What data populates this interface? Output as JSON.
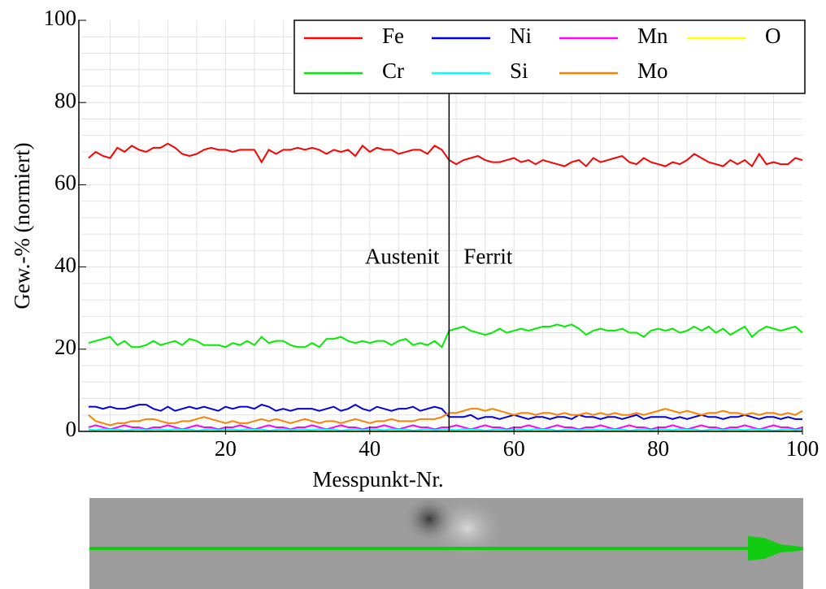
{
  "chart_data": {
    "type": "line",
    "x_label": "Messpunkt-Nr.",
    "y_label": "Gew.-% (normiert)",
    "annotations": [
      "Austenit",
      "Ferrit"
    ],
    "boundary_x": 51,
    "xlim": [
      0,
      100
    ],
    "xticks": [
      20,
      40,
      60,
      80,
      100
    ],
    "ylim": [
      0,
      100
    ],
    "yticks": [
      0,
      20,
      40,
      60,
      80,
      100
    ],
    "grid": true,
    "minor_divisions": 5,
    "legend": "upper right",
    "x": [
      1,
      2,
      3,
      4,
      5,
      6,
      7,
      8,
      9,
      10,
      11,
      12,
      13,
      14,
      15,
      16,
      17,
      18,
      19,
      20,
      21,
      22,
      23,
      24,
      25,
      26,
      27,
      28,
      29,
      30,
      31,
      32,
      33,
      34,
      35,
      36,
      37,
      38,
      39,
      40,
      41,
      42,
      43,
      44,
      45,
      46,
      47,
      48,
      49,
      50,
      51,
      52,
      53,
      54,
      55,
      56,
      57,
      58,
      59,
      60,
      61,
      62,
      63,
      64,
      65,
      66,
      67,
      68,
      69,
      70,
      71,
      72,
      73,
      74,
      75,
      76,
      77,
      78,
      79,
      80,
      81,
      82,
      83,
      84,
      85,
      86,
      87,
      88,
      89,
      90,
      91,
      92,
      93,
      94,
      95,
      96,
      97,
      98,
      99,
      100
    ],
    "series": [
      {
        "name": "Fe",
        "color": "#ff0000",
        "values": [
          66.5,
          68,
          67,
          66.5,
          69,
          68,
          69.5,
          68.5,
          68,
          69,
          69,
          70,
          69,
          67.5,
          67,
          67.5,
          68.5,
          69,
          68.5,
          68.5,
          68,
          68.5,
          68.5,
          68.5,
          65.5,
          68.5,
          67.5,
          68.5,
          68.5,
          69,
          68.5,
          69,
          68.5,
          67.5,
          68.5,
          68,
          68.5,
          67,
          69.5,
          68,
          69,
          68.5,
          68.5,
          67.5,
          68,
          68.5,
          68.5,
          67.5,
          69.5,
          68.5,
          66,
          65,
          66,
          66.5,
          67,
          66,
          65.5,
          65.5,
          66,
          66.5,
          65.5,
          66,
          65,
          66,
          65.5,
          65,
          64.5,
          65.5,
          66,
          64.5,
          66.5,
          65.5,
          66,
          66.5,
          67,
          65.5,
          65,
          66.5,
          65.5,
          65,
          64.5,
          65.5,
          65,
          66,
          67.5,
          66.5,
          65.5,
          65,
          64.5,
          66,
          65,
          66,
          64.5,
          67.5,
          65,
          65.5,
          65,
          65,
          66.5,
          66
        ]
      },
      {
        "name": "Ni",
        "color": "#0000e0",
        "values": [
          6,
          6,
          5.5,
          6,
          5.5,
          5.5,
          6,
          6.5,
          6.5,
          5.5,
          5,
          6,
          5,
          5.5,
          6,
          5.5,
          6,
          5.5,
          5,
          6,
          5.5,
          6,
          6,
          5.5,
          6.5,
          6,
          5,
          5.5,
          5,
          5.5,
          5.5,
          5.5,
          5,
          5.5,
          6,
          5,
          5.5,
          6.5,
          5.5,
          5,
          6,
          5.5,
          5,
          5.5,
          5.5,
          6,
          5,
          5.5,
          6,
          5.5,
          3.5,
          3.5,
          3.5,
          4,
          3,
          3.5,
          3.5,
          3,
          3.5,
          4,
          3.5,
          3,
          3.5,
          3.5,
          3,
          3.5,
          3.5,
          3,
          4,
          3.5,
          3.5,
          3,
          3.5,
          3.5,
          3,
          3.5,
          4,
          3,
          3.5,
          3.5,
          3.5,
          3,
          3.5,
          3,
          3.5,
          4,
          3.5,
          3.5,
          3,
          3.5,
          3.5,
          4,
          3.5,
          3,
          3.5,
          3.5,
          3,
          3.5,
          3,
          3
        ]
      },
      {
        "name": "Mn",
        "color": "#ff00ff",
        "values": [
          1,
          1.5,
          1,
          0.5,
          1,
          1.5,
          1,
          1,
          0.5,
          1,
          1,
          1.5,
          1,
          0.5,
          1,
          1.5,
          1,
          1,
          0.5,
          1,
          1,
          1.5,
          1,
          0.5,
          1,
          1.5,
          1,
          1,
          0.5,
          1,
          1,
          1.5,
          1,
          0.5,
          1,
          1.5,
          1,
          1,
          0.5,
          1,
          1,
          1.5,
          1,
          0.5,
          1,
          1.5,
          1,
          1,
          0.5,
          1,
          1,
          1.5,
          1,
          0.5,
          1,
          1.5,
          1,
          1,
          0.5,
          1,
          1,
          1.5,
          1,
          0.5,
          1,
          1.5,
          1,
          1,
          0.5,
          1,
          1,
          1.5,
          1,
          0.5,
          1,
          1.5,
          1,
          1,
          0.5,
          1,
          1,
          1.5,
          1,
          0.5,
          1,
          1.5,
          1,
          1,
          0.5,
          1,
          1,
          1.5,
          1,
          0.5,
          1,
          1.5,
          1,
          1,
          0.5,
          1
        ]
      },
      {
        "name": "O",
        "color": "#ffff00",
        "values": [
          0.2,
          0.1,
          0.3,
          0.1,
          0.2,
          0.1,
          0.2,
          0.3,
          0.1,
          0.2,
          0.2,
          0.1,
          0.3,
          0.1,
          0.2,
          0.1,
          0.2,
          0.3,
          0.1,
          0.2,
          0.2,
          0.1,
          0.3,
          0.1,
          0.2,
          0.1,
          0.2,
          0.3,
          0.1,
          0.2,
          0.2,
          0.1,
          0.3,
          0.1,
          0.2,
          0.1,
          0.2,
          0.3,
          0.1,
          0.2,
          0.2,
          0.1,
          0.3,
          0.1,
          0.2,
          0.1,
          0.2,
          0.3,
          0.1,
          0.2,
          0.2,
          0.1,
          0.3,
          0.1,
          0.2,
          0.1,
          0.2,
          0.3,
          0.1,
          0.2,
          0.2,
          0.1,
          0.3,
          0.1,
          0.2,
          0.1,
          0.2,
          0.3,
          0.1,
          0.2,
          0.2,
          0.1,
          0.3,
          0.1,
          0.2,
          0.1,
          0.2,
          0.3,
          0.1,
          0.2,
          0.2,
          0.1,
          0.3,
          0.1,
          0.2,
          0.1,
          0.2,
          0.3,
          0.1,
          0.2,
          0.2,
          0.1,
          0.3,
          0.1,
          0.2,
          0.1,
          0.2,
          0.3,
          0.1,
          0.2
        ]
      },
      {
        "name": "Cr",
        "color": "#00ee00",
        "values": [
          21.5,
          22,
          22.5,
          23,
          21,
          22,
          20.5,
          20.5,
          21,
          22,
          21,
          21.5,
          22,
          21,
          22.5,
          22,
          21,
          21,
          21,
          20.5,
          21.5,
          21,
          22,
          21,
          23,
          21.5,
          22,
          22,
          21,
          20.5,
          20.5,
          21.5,
          20.5,
          22.5,
          22.5,
          23,
          22,
          21.5,
          22,
          21.5,
          22,
          22,
          21,
          22,
          22.5,
          21,
          21.5,
          21,
          22,
          20.5,
          24.5,
          25,
          25.5,
          24.5,
          24,
          23.5,
          24,
          25,
          24,
          24.5,
          25,
          24.5,
          25,
          25.5,
          25.5,
          26,
          25.5,
          26,
          25,
          23.5,
          24.5,
          25,
          24.5,
          24.5,
          25,
          24,
          24,
          23,
          24.5,
          25,
          24.5,
          25,
          24,
          24.5,
          25.5,
          24.5,
          25.5,
          24,
          25,
          23.5,
          24.5,
          25.5,
          23,
          24.5,
          25.5,
          25,
          24.5,
          25,
          25.5,
          24
        ]
      },
      {
        "name": "Si",
        "color": "#00ffff",
        "values": [
          0.5,
          0.3,
          0.6,
          0.4,
          0.5,
          0.2,
          0.4,
          0.6,
          0.3,
          0.5,
          0.5,
          0.3,
          0.6,
          0.4,
          0.5,
          0.2,
          0.4,
          0.6,
          0.3,
          0.5,
          0.5,
          0.3,
          0.6,
          0.4,
          0.5,
          0.2,
          0.4,
          0.6,
          0.3,
          0.5,
          0.5,
          0.3,
          0.6,
          0.4,
          0.5,
          0.2,
          0.4,
          0.6,
          0.3,
          0.5,
          0.5,
          0.3,
          0.6,
          0.4,
          0.5,
          0.2,
          0.4,
          0.6,
          0.3,
          0.5,
          0.5,
          0.3,
          0.6,
          0.4,
          0.5,
          0.2,
          0.4,
          0.6,
          0.3,
          0.5,
          0.5,
          0.3,
          0.6,
          0.4,
          0.5,
          0.2,
          0.4,
          0.6,
          0.3,
          0.5,
          0.5,
          0.3,
          0.6,
          0.4,
          0.5,
          0.2,
          0.4,
          0.6,
          0.3,
          0.5,
          0.5,
          0.3,
          0.6,
          0.4,
          0.5,
          0.2,
          0.4,
          0.6,
          0.3,
          0.5,
          0.5,
          0.3,
          0.6,
          0.4,
          0.5,
          0.2,
          0.4,
          0.6,
          0.3,
          0.5
        ]
      },
      {
        "name": "Mo",
        "color": "#ff8000",
        "values": [
          4,
          2.5,
          2,
          1.5,
          2,
          2,
          2.5,
          2.5,
          3,
          3,
          2.5,
          2,
          2,
          2.5,
          2.5,
          3,
          3.5,
          3,
          2.5,
          2,
          2.5,
          2,
          2,
          2.5,
          3,
          2.5,
          3,
          2.5,
          2,
          2.5,
          3,
          2.5,
          2,
          2.5,
          2.5,
          2,
          2.5,
          3,
          2.5,
          2,
          2.5,
          2.5,
          3,
          2.5,
          2.5,
          2.5,
          3,
          3,
          3,
          3.5,
          4.5,
          4.5,
          5,
          5.5,
          5.5,
          5,
          5.5,
          5,
          4.5,
          4,
          4.5,
          4.5,
          4,
          4.5,
          4.5,
          4,
          4.5,
          4,
          4,
          4.5,
          4,
          4.5,
          4,
          4.5,
          4,
          4,
          4.5,
          4,
          4.5,
          5,
          5.5,
          5,
          4.5,
          5,
          4.5,
          4,
          4.5,
          4.5,
          5,
          4.5,
          4.5,
          4,
          4.5,
          4,
          4.5,
          4.5,
          4,
          4.5,
          4,
          5
        ]
      }
    ]
  }
}
